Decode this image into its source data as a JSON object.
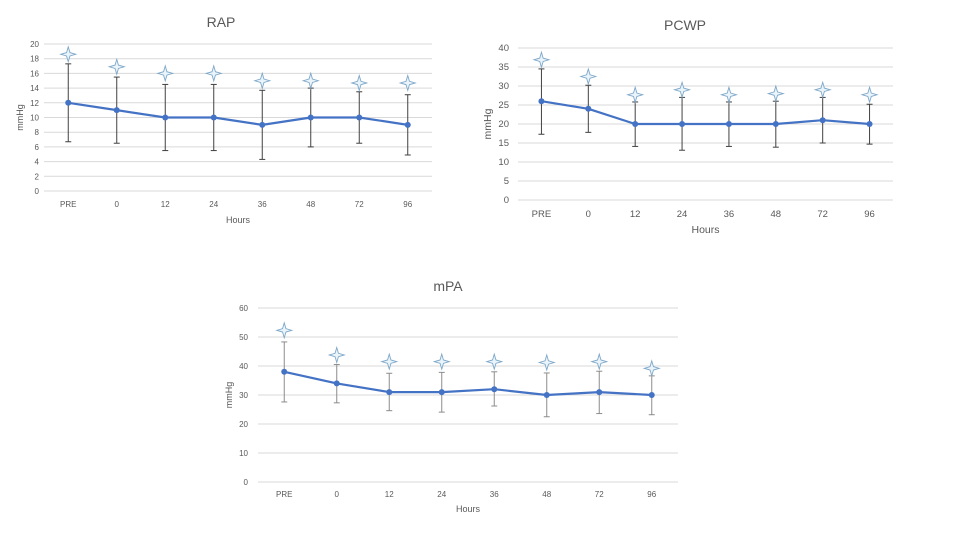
{
  "colors": {
    "line": "#4472c4",
    "errorbar": "#404040",
    "errorbar_light": "#8c8c8c",
    "grid": "#d9d9d9",
    "star_fill": "#eaf4fb",
    "star_stroke": "#7fa8c9"
  },
  "chart_data": [
    {
      "type": "line",
      "title": "RAP",
      "xlabel": "Hours",
      "ylabel": "mmHg",
      "categories": [
        "PRE",
        "0",
        "12",
        "24",
        "36",
        "48",
        "72",
        "96"
      ],
      "ylim": [
        0,
        20
      ],
      "yticks": [
        0,
        2,
        4,
        6,
        8,
        10,
        12,
        14,
        16,
        18,
        20
      ],
      "series": [
        {
          "name": "RAP",
          "values": [
            12,
            11,
            10,
            10,
            9,
            10,
            10,
            9
          ]
        }
      ],
      "error_low": [
        6.7,
        6.5,
        5.5,
        5.5,
        4.3,
        6,
        6.5,
        4.9
      ],
      "error_high": [
        17.3,
        15.5,
        14.5,
        14.5,
        13.7,
        14,
        13.5,
        13.1
      ],
      "star_markers": [
        18.6,
        16.9,
        16,
        16,
        15,
        15,
        14.7,
        14.7
      ]
    },
    {
      "type": "line",
      "title": "PCWP",
      "xlabel": "Hours",
      "ylabel": "mmHg",
      "categories": [
        "PRE",
        "0",
        "12",
        "24",
        "36",
        "48",
        "72",
        "96"
      ],
      "ylim": [
        0,
        40
      ],
      "yticks": [
        0,
        5,
        10,
        15,
        20,
        25,
        30,
        35,
        40
      ],
      "series": [
        {
          "name": "PCWP",
          "values": [
            26,
            24,
            20,
            20,
            20,
            20,
            21,
            20
          ]
        }
      ],
      "error_low": [
        17.3,
        17.8,
        14.1,
        13.1,
        14.1,
        13.9,
        15,
        14.7
      ],
      "error_high": [
        34.5,
        30.2,
        25.8,
        27,
        25.8,
        26,
        27,
        25.2
      ],
      "star_markers": [
        36.9,
        32.5,
        27.7,
        29,
        27.7,
        28,
        29,
        27.7
      ]
    },
    {
      "type": "line",
      "title": "mPA",
      "xlabel": "Hours",
      "ylabel": "mmHg",
      "categories": [
        "PRE",
        "0",
        "12",
        "24",
        "36",
        "48",
        "72",
        "96"
      ],
      "ylim": [
        0,
        60
      ],
      "yticks": [
        0,
        10,
        20,
        30,
        40,
        50,
        60
      ],
      "series": [
        {
          "name": "mPA",
          "values": [
            38,
            34,
            31,
            31,
            32,
            30,
            31,
            30
          ]
        }
      ],
      "error_low": [
        27.6,
        27.3,
        24.6,
        24.1,
        26.2,
        22.5,
        23.6,
        23.2
      ],
      "error_high": [
        48.3,
        40.5,
        37.5,
        37.8,
        38,
        37.6,
        38.2,
        36.6
      ],
      "star_markers": [
        52.3,
        43.8,
        41.5,
        41.5,
        41.5,
        41.2,
        41.5,
        39.2
      ]
    }
  ]
}
